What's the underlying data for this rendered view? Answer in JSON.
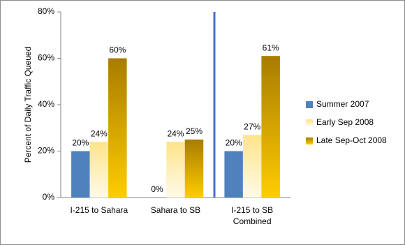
{
  "chart_data": {
    "type": "bar",
    "y_label": "Percent of Daily Traffic Queued",
    "categories": [
      "I-215 to Sahara",
      "Sahara to SB",
      "I-215 to SB Combined"
    ],
    "series": [
      {
        "name": "Summer 2007",
        "color": "#4f81bd",
        "values": [
          20,
          0,
          20
        ],
        "value_labels": [
          "20%",
          "0%",
          "20%"
        ]
      },
      {
        "name": "Early Sep 2008",
        "color": "#ffe48a",
        "values": [
          24,
          24,
          27
        ],
        "value_labels": [
          "24%",
          "24%",
          "27%"
        ]
      },
      {
        "name": "Late Sep-Oct 2008",
        "color": "#a87c00",
        "values": [
          60,
          25,
          61
        ],
        "value_labels": [
          "60%",
          "25%",
          "61%"
        ]
      }
    ],
    "ylim": [
      0,
      80
    ],
    "yticks": [
      {
        "value": 0,
        "label": "0%"
      },
      {
        "value": 20,
        "label": "20%"
      },
      {
        "value": 40,
        "label": "40%"
      },
      {
        "value": 60,
        "label": "60%"
      },
      {
        "value": 80,
        "label": "80%"
      }
    ],
    "legend": "right"
  }
}
